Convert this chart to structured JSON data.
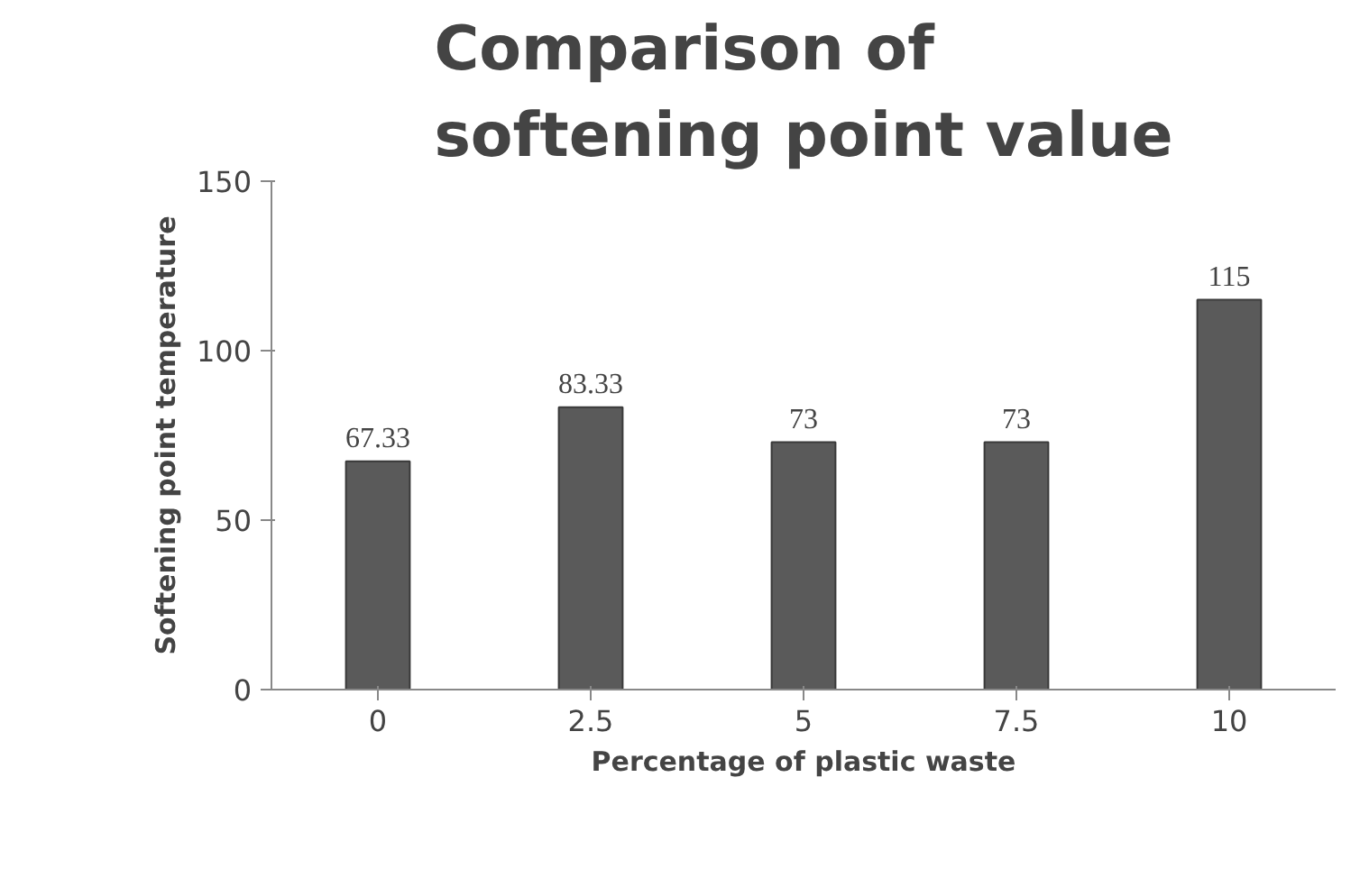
{
  "chart_data": {
    "type": "bar",
    "title": "Comparison of softening point value",
    "xlabel": "Percentage of plastic waste",
    "ylabel": "Softening point temperature",
    "categories": [
      "0",
      "2.5",
      "5",
      "7.5",
      "10"
    ],
    "values": [
      67.33,
      83.33,
      73,
      73,
      115
    ],
    "color": "#5a5a5a",
    "ylim": [
      0,
      150
    ],
    "yticks": [
      0,
      50,
      100,
      150
    ],
    "grid": false,
    "data_labels": true
  }
}
